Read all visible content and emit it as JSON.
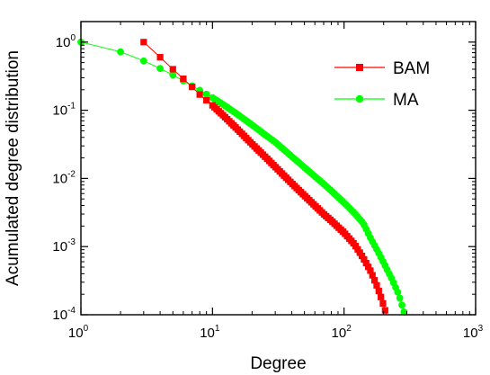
{
  "chart_data": {
    "type": "line",
    "title": "",
    "xlabel": "Degree",
    "ylabel": "Acumulated degree distribution",
    "xscale": "log",
    "yscale": "log",
    "xlim": [
      1,
      1000
    ],
    "ylim": [
      0.0001,
      2
    ],
    "grid": false,
    "legend_position": "top-right",
    "x_ticks": [
      {
        "base": "10",
        "exp": "0",
        "value": 1
      },
      {
        "base": "10",
        "exp": "1",
        "value": 10
      },
      {
        "base": "10",
        "exp": "2",
        "value": 100
      },
      {
        "base": "10",
        "exp": "3",
        "value": 1000
      }
    ],
    "y_ticks": [
      {
        "base": "10",
        "exp": "0",
        "value": 1
      },
      {
        "base": "10",
        "exp": "-1",
        "value": 0.1
      },
      {
        "base": "10",
        "exp": "-2",
        "value": 0.01
      },
      {
        "base": "10",
        "exp": "-3",
        "value": 0.001
      },
      {
        "base": "10",
        "exp": "-4",
        "value": 0.0001
      }
    ],
    "series": [
      {
        "name": "BAM",
        "color": "#ff0000",
        "marker": "square",
        "points": [
          [
            3,
            1.0
          ],
          [
            4,
            0.6
          ],
          [
            5,
            0.4
          ],
          [
            6,
            0.29
          ],
          [
            7,
            0.22
          ],
          [
            8,
            0.17
          ],
          [
            9,
            0.14
          ],
          [
            10,
            0.118
          ],
          [
            12,
            0.085
          ],
          [
            15,
            0.056
          ],
          [
            20,
            0.032
          ],
          [
            25,
            0.021
          ],
          [
            30,
            0.0148
          ],
          [
            40,
            0.0085
          ],
          [
            50,
            0.0056
          ],
          [
            60,
            0.004
          ],
          [
            70,
            0.003
          ],
          [
            80,
            0.0024
          ],
          [
            100,
            0.0016
          ],
          [
            120,
            0.00108
          ],
          [
            140,
            0.00068
          ],
          [
            160,
            0.00043
          ],
          [
            180,
            0.00025
          ],
          [
            195,
            0.00016
          ],
          [
            210,
            0.0001
          ]
        ]
      },
      {
        "name": "MA",
        "color": "#00ff00",
        "marker": "circle",
        "points": [
          [
            1,
            1.0
          ],
          [
            2,
            0.72
          ],
          [
            3,
            0.53
          ],
          [
            4,
            0.41
          ],
          [
            5,
            0.33
          ],
          [
            6,
            0.27
          ],
          [
            7,
            0.228
          ],
          [
            8,
            0.196
          ],
          [
            9,
            0.172
          ],
          [
            10,
            0.153
          ],
          [
            12,
            0.122
          ],
          [
            15,
            0.091
          ],
          [
            20,
            0.061
          ],
          [
            25,
            0.044
          ],
          [
            30,
            0.034
          ],
          [
            40,
            0.021
          ],
          [
            50,
            0.0145
          ],
          [
            60,
            0.0107
          ],
          [
            70,
            0.0083
          ],
          [
            80,
            0.0066
          ],
          [
            100,
            0.0044
          ],
          [
            120,
            0.0031
          ],
          [
            140,
            0.0022
          ],
          [
            160,
            0.0013
          ],
          [
            180,
            0.00086
          ],
          [
            200,
            0.00058
          ],
          [
            230,
            0.00034
          ],
          [
            260,
            0.0002
          ],
          [
            290,
            0.0001
          ]
        ]
      }
    ]
  }
}
